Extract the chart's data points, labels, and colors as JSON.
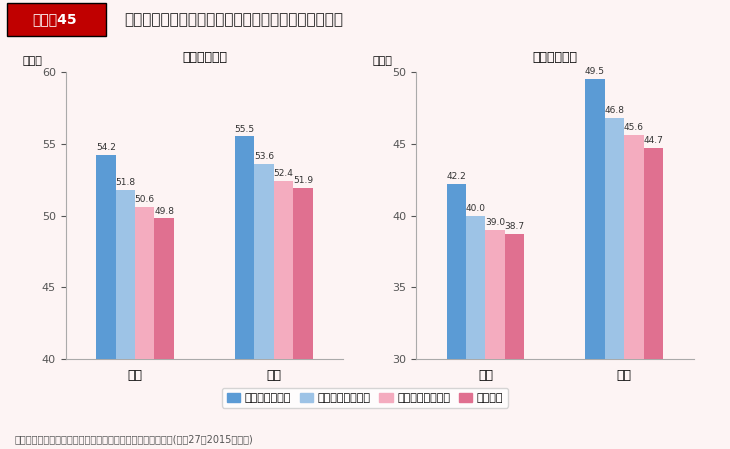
{
  "title": "朝食の摂取状況と新体力テストの体力合計点との関係",
  "header_label": "図表－45",
  "left_subtitle": "小学校５年生",
  "right_subtitle": "中学校２年生",
  "ylabel": "（点）",
  "left_ylim": [
    40,
    60
  ],
  "left_yticks": [
    40,
    45,
    50,
    55,
    60
  ],
  "right_ylim": [
    30,
    50
  ],
  "right_yticks": [
    30,
    35,
    40,
    45,
    50
  ],
  "categories": [
    "男子",
    "女子"
  ],
  "left_data": {
    "男子": [
      54.2,
      51.8,
      50.6,
      49.8
    ],
    "女子": [
      55.5,
      53.6,
      52.4,
      51.9
    ]
  },
  "right_data": {
    "男子": [
      42.2,
      40.0,
      39.0,
      38.7
    ],
    "女子": [
      49.5,
      46.8,
      45.6,
      44.7
    ]
  },
  "legend_labels": [
    "毎日食べている",
    "食べない日もある",
    "食べない日が多い",
    "食べない"
  ],
  "bar_colors": [
    "#5b9bd5",
    "#9dc3e6",
    "#f4acbf",
    "#e07090"
  ],
  "source": "資料：スポーツ庁「全国体力・運動能力、運動習慣等調査」(平成27（2015）年度)",
  "header_box_color": "#c00000",
  "header_text_color": "#ffffff",
  "background_color": "#fdf4f4"
}
